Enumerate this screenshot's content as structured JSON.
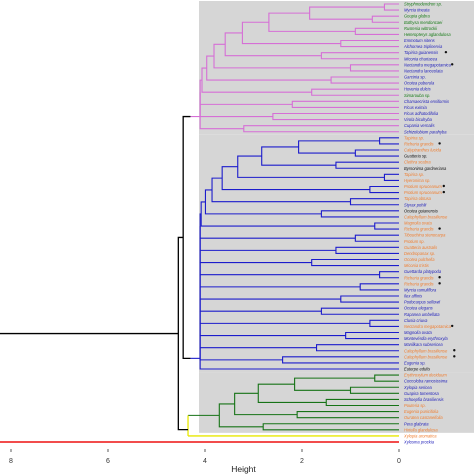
{
  "chart_data": {
    "type": "dendrogram",
    "xlabel": "Height",
    "xlim": [
      8.5,
      0
    ],
    "xticks": [
      8,
      6,
      4,
      2,
      0
    ],
    "grid": false,
    "group_box_color": "#d6d6d6",
    "colors": {
      "cluster_magenta": "#d66fd6",
      "cluster_blue": "#1c1ccc",
      "cluster_green": "#167316",
      "cluster_yellow": "#e8e800",
      "root_black": "#000000",
      "root_red": "#ee1111",
      "label_blue": "#2222bb",
      "label_green": "#157a15",
      "label_orange": "#f07d2e",
      "label_black": "#111111"
    },
    "clusters": [
      {
        "name": "cluster_magenta",
        "height": 4.3,
        "leaves": [
          {
            "label": "Stryphnodendron sp.",
            "color": "#157a15",
            "h": 0.3
          },
          {
            "label": "Myrcia tineata",
            "color": "#2222bb",
            "h": 0.3
          },
          {
            "label": "Goupia glabra",
            "color": "#157a15",
            "h": 0.55
          },
          {
            "label": "Bathysa mendoncaei",
            "color": "#157a15",
            "h": 0.55
          },
          {
            "label": "Rustenia wittrockii",
            "color": "#157a15",
            "h": 0.9
          },
          {
            "label": "Heteropterys aglandulosa",
            "color": "#157a15",
            "h": 0.9
          },
          {
            "label": "Emmotum nitens",
            "color": "#2222bb",
            "h": 1.2
          },
          {
            "label": "Alchornea triplinervia",
            "color": "#2222bb",
            "h": 1.2
          },
          {
            "label": "Tapirira guianensis",
            "color": "#2222bb",
            "h": 1.6,
            "mark": true
          },
          {
            "label": "Miconia chartacea",
            "color": "#2222bb",
            "h": 1.6
          },
          {
            "label": "Nectandra megapotamica",
            "color": "#2222bb",
            "h": 1.0,
            "mark": true
          },
          {
            "label": "Nectandra lanceolata",
            "color": "#2222bb",
            "h": 1.0
          },
          {
            "label": "Garcinia sp.",
            "color": "#2222bb",
            "h": 1.4
          },
          {
            "label": "Ocotea puberula",
            "color": "#2222bb",
            "h": 1.4
          },
          {
            "label": "Hovenia dulcis",
            "color": "#2222bb",
            "h": 1.8
          },
          {
            "label": "Simarouba sp.",
            "color": "#157a15",
            "h": 1.8
          },
          {
            "label": "Chamaecrista ensiformis",
            "color": "#2222bb",
            "h": 2.2
          },
          {
            "label": "Ficus eximia",
            "color": "#2222bb",
            "h": 2.2
          },
          {
            "label": "Ficus adhatodifolia",
            "color": "#2222bb",
            "h": 2.6
          },
          {
            "label": "Virola bicuhyba",
            "color": "#2222bb",
            "h": 2.6
          },
          {
            "label": "Cupania vernalis",
            "color": "#2222bb",
            "h": 3.2
          },
          {
            "label": "Schizolobium parahyba",
            "color": "#2222bb",
            "h": 3.2
          }
        ]
      },
      {
        "name": "cluster_blue",
        "height": 4.3,
        "leaves": [
          {
            "label": "Tapirira sp.",
            "color": "#f07d2e",
            "h": 0.4
          },
          {
            "label": "Richeria grandis",
            "color": "#f07d2e",
            "h": 0.4,
            "mark": true
          },
          {
            "label": "Calyptranthes lucida",
            "color": "#f07d2e",
            "h": 0.9
          },
          {
            "label": "Guatteria sp.",
            "color": "#111111",
            "h": 0.9
          },
          {
            "label": "Clethra scabra",
            "color": "#f07d2e",
            "h": 1.3
          },
          {
            "label": "Byrsonima gardneriana",
            "color": "#111111",
            "h": 1.3
          },
          {
            "label": "Tapirira sp.",
            "color": "#f07d2e",
            "h": 0.3
          },
          {
            "label": "Hyeronima sp.",
            "color": "#f07d2e",
            "h": 0.3
          },
          {
            "label": "Protium spruceanum",
            "color": "#f07d2e",
            "h": 0.6,
            "mark": true
          },
          {
            "label": "Protium spruceanum",
            "color": "#f07d2e",
            "h": 0.6,
            "mark": true
          },
          {
            "label": "Tapirira obtusa",
            "color": "#f07d2e",
            "h": 1.0
          },
          {
            "label": "Styrax pohlii",
            "color": "#2222bb",
            "h": 1.0
          },
          {
            "label": "Ocotea guianensis",
            "color": "#111111",
            "h": 1.6
          },
          {
            "label": "Calophyllum brasiliense",
            "color": "#f07d2e",
            "h": 1.6
          },
          {
            "label": "Magnolia ovata",
            "color": "#f07d2e",
            "h": 0.5
          },
          {
            "label": "Richeria grandis",
            "color": "#f07d2e",
            "h": 0.5,
            "mark": true
          },
          {
            "label": "Tibouchina stenocarpa",
            "color": "#f07d2e",
            "h": 0.9
          },
          {
            "label": "Protium sp.",
            "color": "#f07d2e",
            "h": 0.9
          },
          {
            "label": "Guatteria australis",
            "color": "#f07d2e",
            "h": 1.3
          },
          {
            "label": "Dendropanax sp.",
            "color": "#f07d2e",
            "h": 1.3
          },
          {
            "label": "Ocotea pulchella",
            "color": "#f07d2e",
            "h": 1.8
          },
          {
            "label": "Miconia tristis",
            "color": "#f07d2e",
            "h": 1.8
          },
          {
            "label": "Guettarda platypoda",
            "color": "#2222bb",
            "h": 0.4
          },
          {
            "label": "Richeria grandis",
            "color": "#f07d2e",
            "h": 0.4,
            "mark": true
          },
          {
            "label": "Richeria grandis",
            "color": "#f07d2e",
            "h": 0.8,
            "mark": true
          },
          {
            "label": "Myrcia ramuliflora",
            "color": "#2222bb",
            "h": 0.8
          },
          {
            "label": "Ilex affinis",
            "color": "#2222bb",
            "h": 1.2
          },
          {
            "label": "Podocarpus sellowii",
            "color": "#2222bb",
            "h": 1.2
          },
          {
            "label": "Ocotea elegans",
            "color": "#2222bb",
            "h": 1.6
          },
          {
            "label": "Rapanea umbellata",
            "color": "#2222bb",
            "h": 1.6
          },
          {
            "label": "Clusia criuva",
            "color": "#2222bb",
            "h": 0.6
          },
          {
            "label": "Nectandra megapotamica",
            "color": "#f07d2e",
            "h": 0.6,
            "mark": true
          },
          {
            "label": "Magnolia ovata",
            "color": "#2222bb",
            "h": 1.1
          },
          {
            "label": "Montevérdia erythroxyla",
            "color": "#2222bb",
            "h": 1.1
          },
          {
            "label": "Manilkara subsericea",
            "color": "#2222bb",
            "h": 1.7
          },
          {
            "label": "Calophyllum brasiliense",
            "color": "#f07d2e",
            "h": 1.7,
            "mark": true
          },
          {
            "label": "Calophyllum brasiliense",
            "color": "#f07d2e",
            "h": 2.4,
            "mark": true
          },
          {
            "label": "Eugenia sp.",
            "color": "#2222bb",
            "h": 2.4
          },
          {
            "label": "Euterpe edulis",
            "color": "#111111",
            "h": 3.0
          }
        ]
      },
      {
        "name": "cluster_green",
        "height": 4.35,
        "leaves": [
          {
            "label": "Erythroxylum deciduum",
            "color": "#f07d2e",
            "h": 0.5
          },
          {
            "label": "Coccoloba ramosissima",
            "color": "#2222bb",
            "h": 0.5
          },
          {
            "label": "Xylopia sericea",
            "color": "#2222bb",
            "h": 1.0
          },
          {
            "label": "Guapira tomentosa",
            "color": "#2222bb",
            "h": 1.0
          },
          {
            "label": "Schoepfia brasiliensis",
            "color": "#2222bb",
            "h": 1.5
          },
          {
            "label": "Pouteria sp.",
            "color": "#f07d2e",
            "h": 1.5
          },
          {
            "label": "Eugenia punicifolia",
            "color": "#f07d2e",
            "h": 2.1
          },
          {
            "label": "Ouratea castaneifolia",
            "color": "#f07d2e",
            "h": 2.1
          },
          {
            "label": "Pera glabrata",
            "color": "#2222bb",
            "h": 2.8
          },
          {
            "label": "Hirtella glandulosa",
            "color": "#f07d2e",
            "h": 2.8
          }
        ]
      },
      {
        "name": "cluster_yellow",
        "height": 4.35,
        "leaves": [
          {
            "label": "Xylopia aromatica",
            "color": "#f07d2e",
            "h": 1.6
          }
        ]
      },
      {
        "name": "cluster_red",
        "height": 8.5,
        "leaves": [
          {
            "label": "Xylosma prockia",
            "color": "#2222bb",
            "h": 0
          }
        ]
      }
    ],
    "root_heights": {
      "black_main": 4.55,
      "black_upper": 4.45,
      "red_root": 8.5
    }
  }
}
